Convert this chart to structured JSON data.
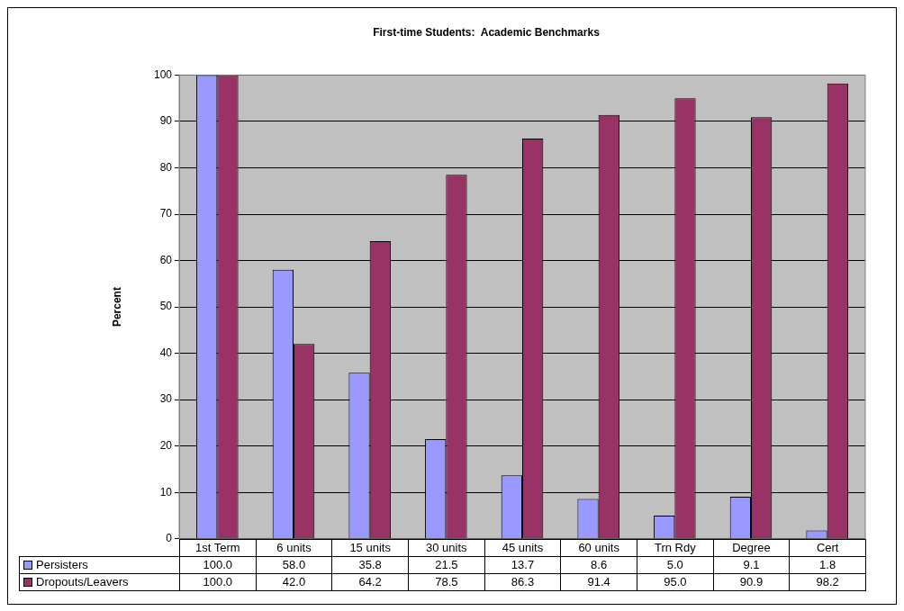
{
  "chart_data": {
    "type": "bar",
    "title": "First-time Students:  Academic Benchmarks",
    "ylabel": "Percent",
    "categories": [
      "1st Term",
      "6 units",
      "15 units",
      "30 units",
      "45 units",
      "60 units",
      "Trn Rdy",
      "Degree",
      "Cert"
    ],
    "series": [
      {
        "name": "Persisters",
        "color": "#9999ff",
        "values": [
          100.0,
          58.0,
          35.8,
          21.5,
          13.7,
          8.6,
          5.0,
          9.1,
          1.8
        ],
        "value_labels": [
          "100.0",
          "58.0",
          "35.8",
          "21.5",
          "13.7",
          "8.6",
          "5.0",
          "9.1",
          "1.8"
        ]
      },
      {
        "name": "Dropouts/Leavers",
        "color": "#993366",
        "values": [
          100.0,
          42.0,
          64.2,
          78.5,
          86.3,
          91.4,
          95.0,
          90.9,
          98.2
        ],
        "value_labels": [
          "100.0",
          "42.0",
          "64.2",
          "78.5",
          "86.3",
          "91.4",
          "95.0",
          "90.9",
          "98.2"
        ]
      }
    ],
    "ylim": [
      0,
      100
    ],
    "yticks": [
      0,
      10,
      20,
      30,
      40,
      50,
      60,
      70,
      80,
      90,
      100
    ],
    "grid": "y",
    "legend": "bottom"
  }
}
